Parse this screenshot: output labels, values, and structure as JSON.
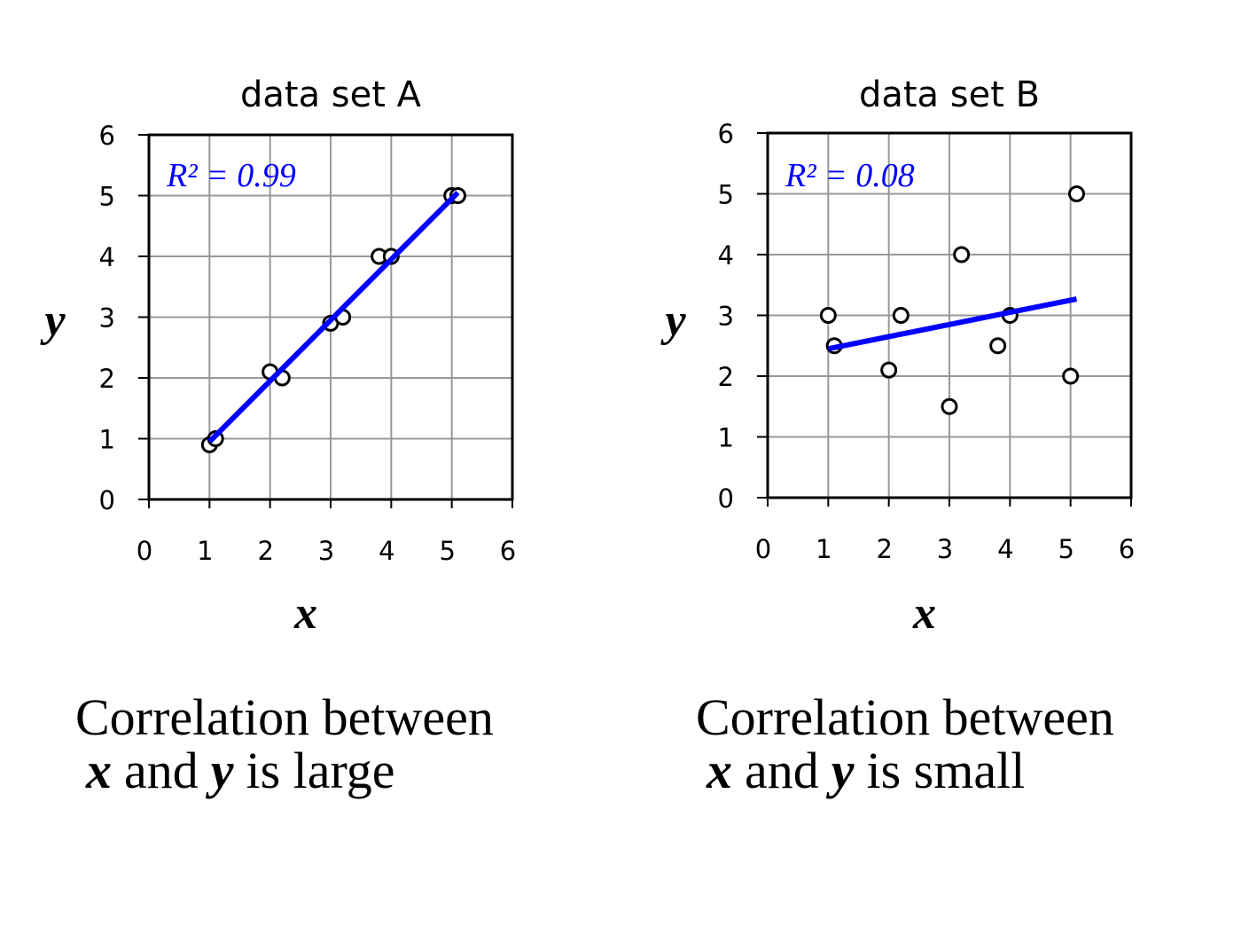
{
  "chart_data": [
    {
      "type": "scatter",
      "title": "data set A",
      "x_label": "x",
      "y_label": "y",
      "annotation": "R² = 0.99",
      "x": [
        1,
        1.1,
        2,
        2.2,
        3,
        3.2,
        3.8,
        4,
        5,
        5.1
      ],
      "values": [
        0.9,
        1,
        2.1,
        2,
        2.9,
        3,
        4,
        4,
        5,
        5
      ],
      "trendline": {
        "x": [
          1,
          5.1
        ],
        "y": [
          0.95,
          5.05
        ],
        "color": "#0000ff"
      },
      "xlim": [
        0,
        6
      ],
      "ylim": [
        0,
        6
      ],
      "xticks": [
        0,
        1,
        2,
        3,
        4,
        5,
        6
      ],
      "yticks": [
        0,
        1,
        2,
        3,
        4,
        5,
        6
      ],
      "grid": true,
      "caption": {
        "line1": "Correlation between",
        "var1": "x",
        "and": "and",
        "var2": "y",
        "rest": "is large"
      }
    },
    {
      "type": "scatter",
      "title": "data set B",
      "x_label": "x",
      "y_label": "y",
      "annotation": "R² = 0.08",
      "x": [
        1,
        1.1,
        2,
        2.2,
        3,
        3.2,
        3.8,
        4,
        5,
        5.1
      ],
      "values": [
        3,
        2.5,
        2.1,
        3,
        1.5,
        4,
        2.5,
        3,
        2,
        5
      ],
      "trendline": {
        "x": [
          1,
          5.1
        ],
        "y": [
          2.45,
          3.27
        ],
        "color": "#0000ff"
      },
      "xlim": [
        0,
        6
      ],
      "ylim": [
        0,
        6
      ],
      "xticks": [
        0,
        1,
        2,
        3,
        4,
        5,
        6
      ],
      "yticks": [
        0,
        1,
        2,
        3,
        4,
        5,
        6
      ],
      "grid": true,
      "caption": {
        "line1": "Correlation between",
        "var1": "x",
        "and": "and",
        "var2": "y",
        "rest": "is small"
      }
    }
  ]
}
